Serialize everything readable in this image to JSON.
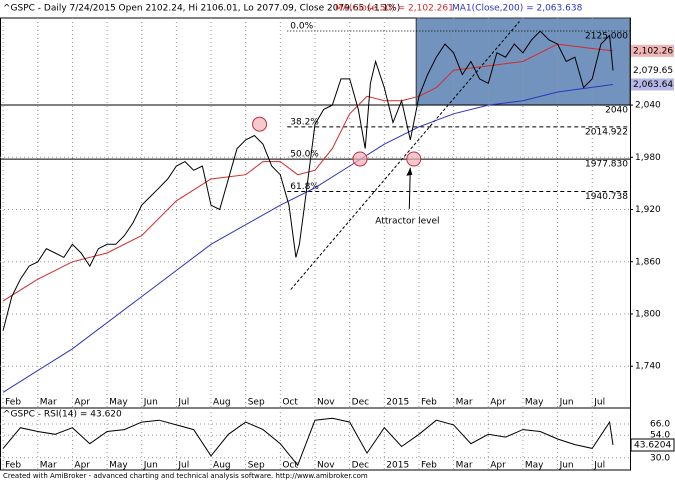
{
  "chart_data": {
    "type": "line",
    "title": "^GSPC - Daily 7/24/2015 Open 2102.24, Hi 2106.01, Lo 2077.09, Close 2079.65 (-1.1%)",
    "ma50_title": "MA(Close,50) = 2,102.261",
    "ma200_title": "MA1(Close,200) = 2,063.638",
    "footer": "Created with AmiBroker - advanced charting and technical analysis software. http://www.amibroker.com",
    "xlim": [
      -0.09,
      18.09
    ],
    "xticks": [
      {
        "value": 0,
        "label": "Feb"
      },
      {
        "value": 1,
        "label": "Mar"
      },
      {
        "value": 2,
        "label": "Apr"
      },
      {
        "value": 3,
        "label": "May"
      },
      {
        "value": 4,
        "label": "Jun"
      },
      {
        "value": 5,
        "label": "Jul"
      },
      {
        "value": 6,
        "label": "Aug"
      },
      {
        "value": 7,
        "label": "Sep"
      },
      {
        "value": 8,
        "label": "Oct"
      },
      {
        "value": 9,
        "label": "Nov"
      },
      {
        "value": 10,
        "label": "Dec"
      },
      {
        "value": 11,
        "label": "2015"
      },
      {
        "value": 12,
        "label": "Feb"
      },
      {
        "value": 13,
        "label": "Mar"
      },
      {
        "value": 14,
        "label": "Apr"
      },
      {
        "value": 15,
        "label": "May"
      },
      {
        "value": 16,
        "label": "Jun"
      },
      {
        "value": 17,
        "label": "Jul"
      }
    ],
    "ylim": [
      1692,
      2140
    ],
    "yticks": [
      {
        "value": 1740,
        "label": "1,740"
      },
      {
        "value": 1800,
        "label": "1,800"
      },
      {
        "value": 1860,
        "label": "1,860"
      },
      {
        "value": 1920,
        "label": "1,920"
      },
      {
        "value": 1980,
        "label": "1,980"
      },
      {
        "value": 2040,
        "label": "2,040"
      }
    ],
    "grid": true,
    "series": [
      {
        "name": "Close",
        "color": "#000000",
        "last_label": "2,079.65",
        "x": [
          0,
          0.25,
          0.5,
          0.75,
          1,
          1.25,
          1.5,
          1.75,
          2,
          2.25,
          2.5,
          2.75,
          3,
          3.25,
          3.5,
          3.75,
          4,
          4.25,
          4.5,
          4.75,
          5,
          5.25,
          5.5,
          5.75,
          6,
          6.25,
          6.5,
          6.75,
          7,
          7.25,
          7.5,
          7.75,
          8,
          8.25,
          8.45,
          8.55,
          8.75,
          9,
          9.25,
          9.5,
          9.75,
          10,
          10.25,
          10.45,
          10.6,
          10.75,
          11,
          11.25,
          11.5,
          11.75,
          12,
          12.25,
          12.5,
          12.75,
          13,
          13.25,
          13.5,
          13.75,
          14,
          14.25,
          14.5,
          14.75,
          15,
          15.25,
          15.5,
          15.75,
          16,
          16.25,
          16.5,
          16.75,
          17,
          17.25,
          17.5,
          17.6
        ],
        "values": [
          1781,
          1820,
          1840,
          1855,
          1860,
          1875,
          1870,
          1865,
          1880,
          1870,
          1855,
          1875,
          1880,
          1880,
          1890,
          1905,
          1925,
          1935,
          1945,
          1955,
          1970,
          1975,
          1965,
          1970,
          1925,
          1920,
          1955,
          1990,
          2000,
          2005,
          1995,
          1970,
          1960,
          1925,
          1865,
          1880,
          1940,
          2018,
          2035,
          2040,
          2070,
          2070,
          2035,
          1990,
          2065,
          2090,
          2060,
          2020,
          2045,
          2000,
          2050,
          2075,
          2095,
          2110,
          2100,
          2075,
          2090,
          2070,
          2065,
          2100,
          2095,
          2110,
          2100,
          2115,
          2125,
          2115,
          2110,
          2090,
          2095,
          2060,
          2070,
          2110,
          2120,
          2079.65
        ]
      },
      {
        "name": "MA(Close,50)",
        "color": "#d42a2a",
        "last_label": "2,102.26",
        "x": [
          0,
          1,
          2,
          3,
          4,
          5,
          6,
          7,
          7.5,
          8,
          8.5,
          9,
          9.5,
          10,
          10.5,
          11,
          11.5,
          12,
          12.5,
          13,
          14,
          15,
          16,
          17,
          17.6
        ],
        "values": [
          1815,
          1840,
          1860,
          1870,
          1890,
          1930,
          1955,
          1960,
          1975,
          1975,
          1960,
          1965,
          1990,
          2030,
          2050,
          2045,
          2045,
          2050,
          2060,
          2080,
          2085,
          2090,
          2110,
          2105,
          2102.261
        ]
      },
      {
        "name": "MA1(Close,200)",
        "color": "#2a35c0",
        "last_label": "2,063.64",
        "x": [
          0,
          2,
          4,
          6,
          8,
          9,
          10,
          11,
          12,
          13,
          14,
          15,
          16,
          17.6
        ],
        "values": [
          1710,
          1760,
          1820,
          1880,
          1925,
          1945,
          1970,
          1995,
          2015,
          2030,
          2040,
          2045,
          2055,
          2063.638
        ]
      }
    ],
    "support": {
      "value": 2040,
      "label": "2040"
    },
    "fib_x_start": 8.2,
    "fib_levels": [
      {
        "label": "0.0%",
        "value": 2125,
        "price_label": "2125.000",
        "style": "dotted"
      },
      {
        "label": "38.2%",
        "value": 2014.922,
        "price_label": "2014.922",
        "style": "dashed"
      },
      {
        "label": "50.0%",
        "value": 1977.83,
        "price_label": "1977.830",
        "style": "solid"
      },
      {
        "label": "61.8%",
        "value": 1940.738,
        "price_label": "1940.738",
        "style": "dashed"
      }
    ],
    "trendline": {
      "x": [
        8.3,
        14.9
      ],
      "y": [
        1828,
        2136
      ]
    },
    "highlight": {
      "x": [
        11.92,
        18.09
      ],
      "y": [
        2040,
        2140
      ],
      "color": "#5a80b4"
    },
    "markers": [
      {
        "x": 7.4,
        "y": 2018
      },
      {
        "x": 10.3,
        "y": 1978
      },
      {
        "x": 11.85,
        "y": 1978
      }
    ],
    "annotation": {
      "text": "Attractor level",
      "x": 10.74,
      "y": 1907,
      "arrow_to": [
        11.75,
        1968
      ]
    },
    "rsi": {
      "title": "^GSPC - RSI(14) = 43.620",
      "color": "#000000",
      "last_label": "43.6204",
      "ylim": [
        17,
        83
      ],
      "yticks": [
        {
          "value": 66,
          "label": "66.0"
        },
        {
          "value": 54,
          "label": "54.0"
        },
        {
          "value": 30,
          "label": "30.0"
        }
      ],
      "x": [
        0,
        0.5,
        1,
        1.5,
        2,
        2.5,
        3,
        3.5,
        4,
        4.5,
        5,
        5.5,
        6,
        6.5,
        7,
        7.5,
        8,
        8.5,
        9,
        9.5,
        10,
        10.5,
        11,
        11.5,
        12,
        12.5,
        13,
        13.5,
        14,
        14.5,
        15,
        15.5,
        16,
        16.5,
        17,
        17.5,
        17.6
      ],
      "values": [
        40,
        62,
        58,
        55,
        62,
        45,
        58,
        60,
        68,
        70,
        65,
        60,
        32,
        55,
        68,
        60,
        45,
        22,
        70,
        72,
        68,
        35,
        62,
        42,
        55,
        70,
        65,
        45,
        55,
        52,
        60,
        58,
        50,
        44,
        40,
        68,
        43.62
      ]
    }
  }
}
